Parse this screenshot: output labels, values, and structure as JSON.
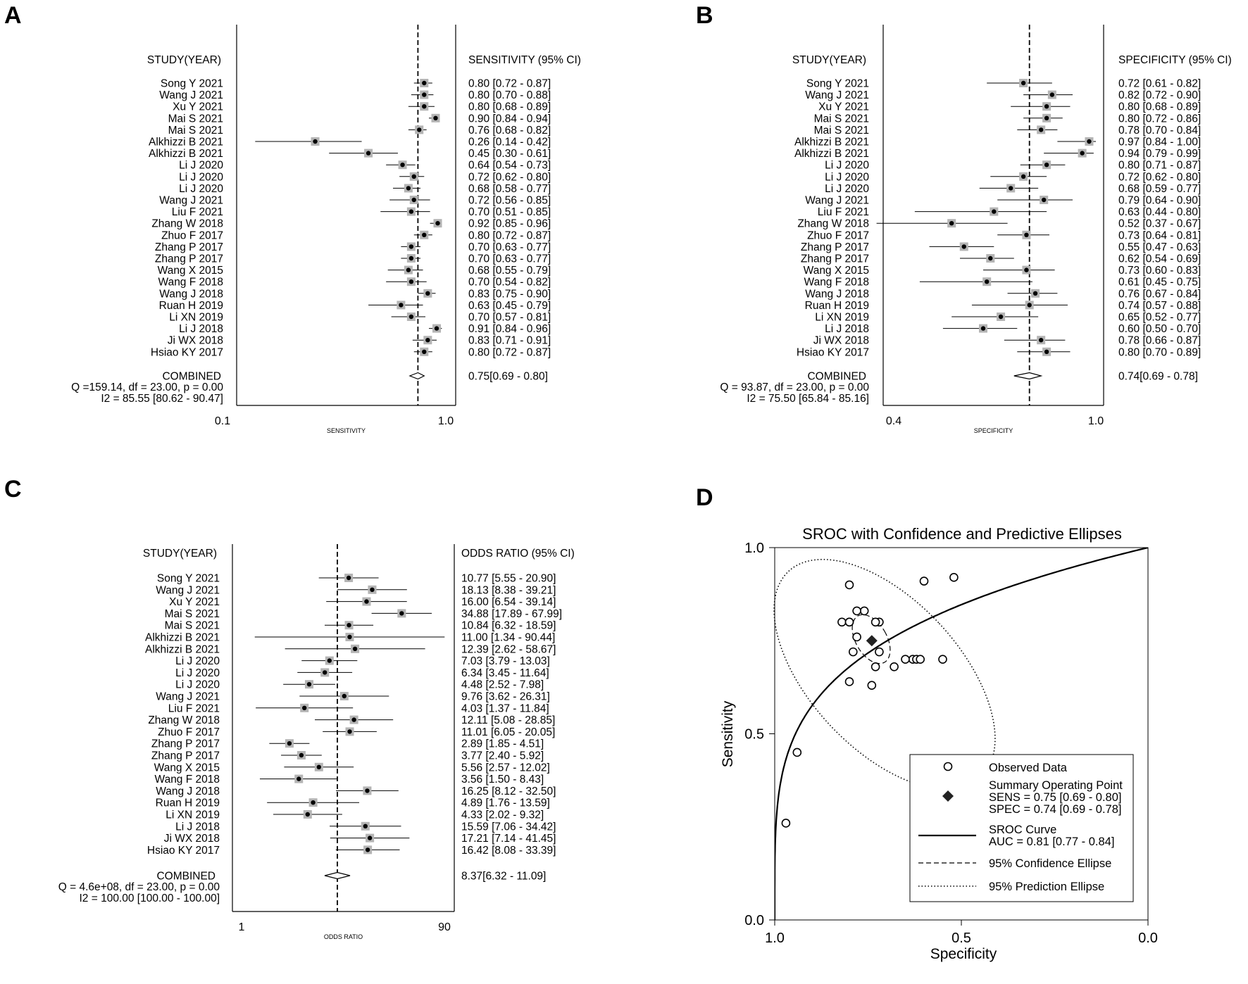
{
  "chart_data": [
    {
      "type": "forest",
      "panel": "A",
      "header_left": "STUDY(YEAR)",
      "header_right": "SENSITIVITY (95% CI)",
      "xlabel": "SENSITIVITY",
      "xscale": "log",
      "xlim": [
        0.1,
        1.0
      ],
      "xticks": [
        "0.1",
        "1.0"
      ],
      "vline": 0.75,
      "studies": [
        {
          "label": "Song Y 2021",
          "est": 0.8,
          "lo": 0.72,
          "hi": 0.87,
          "text": "0.80 [0.72 - 0.87]"
        },
        {
          "label": "Wang J 2021",
          "est": 0.8,
          "lo": 0.7,
          "hi": 0.88,
          "text": "0.80 [0.70 - 0.88]"
        },
        {
          "label": "Xu Y 2021",
          "est": 0.8,
          "lo": 0.68,
          "hi": 0.89,
          "text": "0.80 [0.68 - 0.89]"
        },
        {
          "label": "Mai S 2021",
          "est": 0.9,
          "lo": 0.84,
          "hi": 0.94,
          "text": "0.90 [0.84 - 0.94]"
        },
        {
          "label": "Mai S 2021",
          "est": 0.76,
          "lo": 0.68,
          "hi": 0.82,
          "text": "0.76 [0.68 - 0.82]"
        },
        {
          "label": "Alkhizzi B 2021",
          "est": 0.26,
          "lo": 0.14,
          "hi": 0.42,
          "text": "0.26 [0.14 - 0.42]"
        },
        {
          "label": "Alkhizzi B 2021",
          "est": 0.45,
          "lo": 0.3,
          "hi": 0.61,
          "text": "0.45 [0.30 - 0.61]"
        },
        {
          "label": "Li J 2020",
          "est": 0.64,
          "lo": 0.54,
          "hi": 0.73,
          "text": "0.64 [0.54 - 0.73]"
        },
        {
          "label": "Li J 2020",
          "est": 0.72,
          "lo": 0.62,
          "hi": 0.8,
          "text": "0.72 [0.62 - 0.80]"
        },
        {
          "label": "Li J 2020",
          "est": 0.68,
          "lo": 0.58,
          "hi": 0.77,
          "text": "0.68 [0.58 - 0.77]"
        },
        {
          "label": "Wang J 2021",
          "est": 0.72,
          "lo": 0.56,
          "hi": 0.85,
          "text": "0.72 [0.56 - 0.85]"
        },
        {
          "label": "Liu F 2021",
          "est": 0.7,
          "lo": 0.51,
          "hi": 0.85,
          "text": "0.70 [0.51 - 0.85]"
        },
        {
          "label": "Zhang W 2018",
          "est": 0.92,
          "lo": 0.85,
          "hi": 0.96,
          "text": "0.92 [0.85 - 0.96]"
        },
        {
          "label": "Zhuo F 2017",
          "est": 0.8,
          "lo": 0.72,
          "hi": 0.87,
          "text": "0.80 [0.72 - 0.87]"
        },
        {
          "label": "Zhang P 2017",
          "est": 0.7,
          "lo": 0.63,
          "hi": 0.77,
          "text": "0.70 [0.63 - 0.77]"
        },
        {
          "label": "Zhang P 2017",
          "est": 0.7,
          "lo": 0.63,
          "hi": 0.77,
          "text": "0.70 [0.63 - 0.77]"
        },
        {
          "label": "Wang X 2015",
          "est": 0.68,
          "lo": 0.55,
          "hi": 0.79,
          "text": "0.68 [0.55 - 0.79]"
        },
        {
          "label": "Wang F 2018",
          "est": 0.7,
          "lo": 0.54,
          "hi": 0.82,
          "text": "0.70 [0.54 - 0.82]"
        },
        {
          "label": "Wang J 2018",
          "est": 0.83,
          "lo": 0.75,
          "hi": 0.9,
          "text": "0.83 [0.75 - 0.90]"
        },
        {
          "label": "Ruan H 2019",
          "est": 0.63,
          "lo": 0.45,
          "hi": 0.79,
          "text": "0.63 [0.45 - 0.79]"
        },
        {
          "label": "Li XN 2019",
          "est": 0.7,
          "lo": 0.57,
          "hi": 0.81,
          "text": "0.70 [0.57 - 0.81]"
        },
        {
          "label": "Li J 2018",
          "est": 0.91,
          "lo": 0.84,
          "hi": 0.96,
          "text": "0.91 [0.84 - 0.96]"
        },
        {
          "label": "Ji WX 2018",
          "est": 0.83,
          "lo": 0.71,
          "hi": 0.91,
          "text": "0.83 [0.71 - 0.91]"
        },
        {
          "label": "Hsiao KY 2017",
          "est": 0.8,
          "lo": 0.72,
          "hi": 0.87,
          "text": "0.80 [0.72 - 0.87]"
        }
      ],
      "combined": {
        "label": "COMBINED",
        "est": 0.75,
        "lo": 0.69,
        "hi": 0.8,
        "text": "0.75[0.69 - 0.80]"
      },
      "stats": [
        "Q =159.14, df = 23.00, p =  0.00",
        "I2 = 85.55 [80.62 - 90.47]"
      ]
    },
    {
      "type": "forest",
      "panel": "B",
      "header_left": "STUDY(YEAR)",
      "header_right": "SPECIFICITY (95% CI)",
      "xlabel": "SPECIFICITY",
      "xscale": "log",
      "xlim": [
        0.4,
        1.0
      ],
      "xticks": [
        "0.4",
        "1.0"
      ],
      "vline": 0.74,
      "studies": [
        {
          "label": "Song Y 2021",
          "est": 0.72,
          "lo": 0.61,
          "hi": 0.82,
          "text": "0.72 [0.61 - 0.82]"
        },
        {
          "label": "Wang J 2021",
          "est": 0.82,
          "lo": 0.72,
          "hi": 0.9,
          "text": "0.82 [0.72 - 0.90]"
        },
        {
          "label": "Xu Y 2021",
          "est": 0.8,
          "lo": 0.68,
          "hi": 0.89,
          "text": "0.80 [0.68 - 0.89]"
        },
        {
          "label": "Mai S 2021",
          "est": 0.8,
          "lo": 0.72,
          "hi": 0.86,
          "text": "0.80 [0.72 - 0.86]"
        },
        {
          "label": "Mai S 2021",
          "est": 0.78,
          "lo": 0.7,
          "hi": 0.84,
          "text": "0.78 [0.70 - 0.84]"
        },
        {
          "label": "Alkhizzi B 2021",
          "est": 0.97,
          "lo": 0.84,
          "hi": 1.0,
          "text": "0.97 [0.84 - 1.00]"
        },
        {
          "label": "Alkhizzi B 2021",
          "est": 0.94,
          "lo": 0.79,
          "hi": 0.99,
          "text": "0.94 [0.79 - 0.99]"
        },
        {
          "label": "Li J 2020",
          "est": 0.8,
          "lo": 0.71,
          "hi": 0.87,
          "text": "0.80 [0.71 - 0.87]"
        },
        {
          "label": "Li J 2020",
          "est": 0.72,
          "lo": 0.62,
          "hi": 0.8,
          "text": "0.72 [0.62 - 0.80]"
        },
        {
          "label": "Li J 2020",
          "est": 0.68,
          "lo": 0.59,
          "hi": 0.77,
          "text": "0.68 [0.59 - 0.77]"
        },
        {
          "label": "Wang J 2021",
          "est": 0.79,
          "lo": 0.64,
          "hi": 0.9,
          "text": "0.79 [0.64 - 0.90]"
        },
        {
          "label": "Liu F 2021",
          "est": 0.63,
          "lo": 0.44,
          "hi": 0.8,
          "text": "0.63 [0.44 - 0.80]"
        },
        {
          "label": "Zhang W 2018",
          "est": 0.52,
          "lo": 0.37,
          "hi": 0.67,
          "text": "0.52 [0.37 - 0.67]"
        },
        {
          "label": "Zhuo F 2017",
          "est": 0.73,
          "lo": 0.64,
          "hi": 0.81,
          "text": "0.73 [0.64 - 0.81]"
        },
        {
          "label": "Zhang P 2017",
          "est": 0.55,
          "lo": 0.47,
          "hi": 0.63,
          "text": "0.55 [0.47 - 0.63]"
        },
        {
          "label": "Zhang P 2017",
          "est": 0.62,
          "lo": 0.54,
          "hi": 0.69,
          "text": "0.62 [0.54 - 0.69]"
        },
        {
          "label": "Wang X 2015",
          "est": 0.73,
          "lo": 0.6,
          "hi": 0.83,
          "text": "0.73 [0.60 - 0.83]"
        },
        {
          "label": "Wang F 2018",
          "est": 0.61,
          "lo": 0.45,
          "hi": 0.75,
          "text": "0.61 [0.45 - 0.75]"
        },
        {
          "label": "Wang J 2018",
          "est": 0.76,
          "lo": 0.67,
          "hi": 0.84,
          "text": "0.76 [0.67 - 0.84]"
        },
        {
          "label": "Ruan H 2019",
          "est": 0.74,
          "lo": 0.57,
          "hi": 0.88,
          "text": "0.74 [0.57 - 0.88]"
        },
        {
          "label": "Li XN 2019",
          "est": 0.65,
          "lo": 0.52,
          "hi": 0.77,
          "text": "0.65 [0.52 - 0.77]"
        },
        {
          "label": "Li J 2018",
          "est": 0.6,
          "lo": 0.5,
          "hi": 0.7,
          "text": "0.60 [0.50 - 0.70]"
        },
        {
          "label": "Ji WX 2018",
          "est": 0.78,
          "lo": 0.66,
          "hi": 0.87,
          "text": "0.78 [0.66 - 0.87]"
        },
        {
          "label": "Hsiao KY 2017",
          "est": 0.8,
          "lo": 0.7,
          "hi": 0.89,
          "text": "0.80 [0.70 - 0.89]"
        }
      ],
      "combined": {
        "label": "COMBINED",
        "est": 0.74,
        "lo": 0.69,
        "hi": 0.78,
        "text": "0.74[0.69 - 0.78]"
      },
      "stats": [
        "Q = 93.87, df = 23.00, p =  0.00",
        "I2 = 75.50 [65.84 - 85.16]"
      ]
    },
    {
      "type": "forest",
      "panel": "C",
      "header_left": "STUDY(YEAR)",
      "header_right": "ODDS RATIO (95% CI)",
      "xlabel": "ODDS RATIO",
      "xscale": "log",
      "xlim": [
        1,
        90
      ],
      "xticks": [
        "1",
        "90"
      ],
      "vline": 8.37,
      "studies": [
        {
          "label": "Song Y 2021",
          "est": 10.77,
          "lo": 5.55,
          "hi": 20.9,
          "text": "10.77 [5.55 - 20.90]"
        },
        {
          "label": "Wang J 2021",
          "est": 18.13,
          "lo": 8.38,
          "hi": 39.21,
          "text": "18.13 [8.38 - 39.21]"
        },
        {
          "label": "Xu Y 2021",
          "est": 16.0,
          "lo": 6.54,
          "hi": 39.14,
          "text": "16.00 [6.54 - 39.14]"
        },
        {
          "label": "Mai S 2021",
          "est": 34.88,
          "lo": 17.89,
          "hi": 67.99,
          "text": "34.88 [17.89 - 67.99]"
        },
        {
          "label": "Mai S 2021",
          "est": 10.84,
          "lo": 6.32,
          "hi": 18.59,
          "text": "10.84 [6.32 - 18.59]"
        },
        {
          "label": "Alkhizzi B 2021",
          "est": 11.0,
          "lo": 1.34,
          "hi": 90.44,
          "text": "11.00 [1.34 - 90.44]"
        },
        {
          "label": "Alkhizzi B 2021",
          "est": 12.39,
          "lo": 2.62,
          "hi": 58.67,
          "text": "12.39 [2.62 - 58.67]"
        },
        {
          "label": "Li J 2020",
          "est": 7.03,
          "lo": 3.79,
          "hi": 13.03,
          "text": "7.03 [3.79 - 13.03]"
        },
        {
          "label": "Li J 2020",
          "est": 6.34,
          "lo": 3.45,
          "hi": 11.64,
          "text": "6.34 [3.45 - 11.64]"
        },
        {
          "label": "Li J 2020",
          "est": 4.48,
          "lo": 2.52,
          "hi": 7.98,
          "text": "4.48 [2.52 - 7.98]"
        },
        {
          "label": "Wang J 2021",
          "est": 9.76,
          "lo": 3.62,
          "hi": 26.31,
          "text": "9.76 [3.62 - 26.31]"
        },
        {
          "label": "Liu F 2021",
          "est": 4.03,
          "lo": 1.37,
          "hi": 11.84,
          "text": "4.03 [1.37 - 11.84]"
        },
        {
          "label": "Zhang W 2018",
          "est": 12.11,
          "lo": 5.08,
          "hi": 28.85,
          "text": "12.11 [5.08 - 28.85]"
        },
        {
          "label": "Zhuo F 2017",
          "est": 11.01,
          "lo": 6.05,
          "hi": 20.05,
          "text": "11.01 [6.05 - 20.05]"
        },
        {
          "label": "Zhang P 2017",
          "est": 2.89,
          "lo": 1.85,
          "hi": 4.51,
          "text": "2.89 [1.85 - 4.51]"
        },
        {
          "label": "Zhang P 2017",
          "est": 3.77,
          "lo": 2.4,
          "hi": 5.92,
          "text": "3.77 [2.40 - 5.92]"
        },
        {
          "label": "Wang X 2015",
          "est": 5.56,
          "lo": 2.57,
          "hi": 12.02,
          "text": "5.56 [2.57 - 12.02]"
        },
        {
          "label": "Wang F 2018",
          "est": 3.56,
          "lo": 1.5,
          "hi": 8.43,
          "text": "3.56 [1.50 - 8.43]"
        },
        {
          "label": "Wang J 2018",
          "est": 16.25,
          "lo": 8.12,
          "hi": 32.5,
          "text": "16.25 [8.12 - 32.50]"
        },
        {
          "label": "Ruan H 2019",
          "est": 4.89,
          "lo": 1.76,
          "hi": 13.59,
          "text": "4.89 [1.76 - 13.59]"
        },
        {
          "label": "Li XN 2019",
          "est": 4.33,
          "lo": 2.02,
          "hi": 9.32,
          "text": "4.33 [2.02 - 9.32]"
        },
        {
          "label": "Li J 2018",
          "est": 15.59,
          "lo": 7.06,
          "hi": 34.42,
          "text": "15.59 [7.06 - 34.42]"
        },
        {
          "label": "Ji WX 2018",
          "est": 17.21,
          "lo": 7.14,
          "hi": 41.45,
          "text": "17.21 [7.14 - 41.45]"
        },
        {
          "label": "Hsiao KY 2017",
          "est": 16.42,
          "lo": 8.08,
          "hi": 33.39,
          "text": "16.42 [8.08 - 33.39]"
        }
      ],
      "combined": {
        "label": "COMBINED",
        "est": 8.37,
        "lo": 6.32,
        "hi": 11.09,
        "text": "8.37[6.32 - 11.09]"
      },
      "stats": [
        "Q = 4.6e+08, df = 23.00, p =  0.00",
        "I2 = 100.00 [100.00 - 100.00]"
      ]
    },
    {
      "type": "scatter",
      "panel": "D",
      "title": "SROC with Confidence and Predictive Ellipses",
      "xlabel": "Specificity",
      "ylabel": "Sensitivity",
      "xlim": [
        1.0,
        0.0
      ],
      "ylim": [
        0.0,
        1.0
      ],
      "xticks": [
        "1.0",
        "0.5",
        "0.0"
      ],
      "yticks": [
        "0.0",
        "0.5",
        "1.0"
      ],
      "observed": [
        {
          "spec": 0.72,
          "sens": 0.8
        },
        {
          "spec": 0.82,
          "sens": 0.8
        },
        {
          "spec": 0.8,
          "sens": 0.8
        },
        {
          "spec": 0.8,
          "sens": 0.9
        },
        {
          "spec": 0.78,
          "sens": 0.76
        },
        {
          "spec": 0.97,
          "sens": 0.26
        },
        {
          "spec": 0.94,
          "sens": 0.45
        },
        {
          "spec": 0.8,
          "sens": 0.64
        },
        {
          "spec": 0.72,
          "sens": 0.72
        },
        {
          "spec": 0.68,
          "sens": 0.68
        },
        {
          "spec": 0.79,
          "sens": 0.72
        },
        {
          "spec": 0.63,
          "sens": 0.7
        },
        {
          "spec": 0.52,
          "sens": 0.92
        },
        {
          "spec": 0.73,
          "sens": 0.8
        },
        {
          "spec": 0.55,
          "sens": 0.7
        },
        {
          "spec": 0.62,
          "sens": 0.7
        },
        {
          "spec": 0.73,
          "sens": 0.68
        },
        {
          "spec": 0.61,
          "sens": 0.7
        },
        {
          "spec": 0.76,
          "sens": 0.83
        },
        {
          "spec": 0.74,
          "sens": 0.63
        },
        {
          "spec": 0.65,
          "sens": 0.7
        },
        {
          "spec": 0.6,
          "sens": 0.91
        },
        {
          "spec": 0.78,
          "sens": 0.83
        },
        {
          "spec": 0.8,
          "sens": 0.8
        }
      ],
      "summary_point": {
        "spec": 0.74,
        "sens": 0.75
      },
      "legend": {
        "position": "bottom-right",
        "observed": "Observed Data",
        "summary": [
          "Summary Operating Point",
          "SENS = 0.75 [0.69 - 0.80]",
          "SPEC = 0.74 [0.69 - 0.78]"
        ],
        "curve": [
          "SROC Curve",
          "AUC = 0.81 [0.77 - 0.84]"
        ],
        "conf": "95% Confidence Ellipse",
        "pred": "95% Prediction Ellipse"
      }
    }
  ]
}
